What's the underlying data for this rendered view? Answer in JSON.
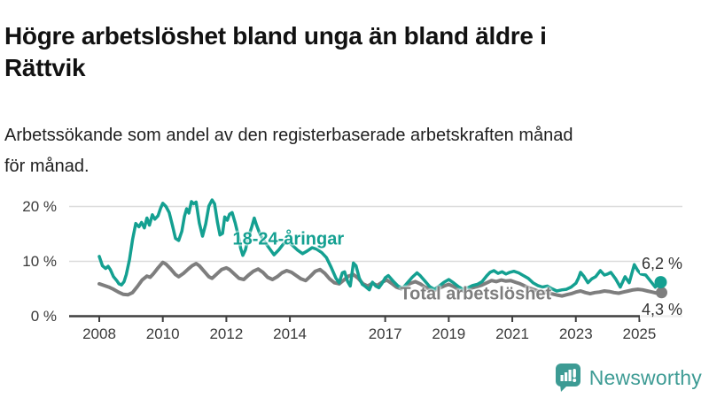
{
  "header": {
    "title": "Högre arbetslöshet bland unga än bland äldre i\nRättvik",
    "subtitle": "Arbetssökande som andel av den registerbaserade arbetskraften månad\nför månad."
  },
  "footer": {
    "brand": "Newsworthy"
  },
  "colors": {
    "young_line": "#14a091",
    "total_line": "#7e7e7e",
    "gridline": "#dcdcdc",
    "axis": "#3f3f3f",
    "value_label": "#333333",
    "brand_teal": "#3d9b94",
    "title": "#111111"
  },
  "chart_data": {
    "type": "line",
    "title": "Högre arbetslöshet bland unga än bland äldre i Rättvik",
    "subtitle": "Arbetssökande som andel av den registerbaserade arbetskraften månad för månad.",
    "x_domain": [
      2008,
      2025.75
    ],
    "y_domain": [
      0,
      22
    ],
    "grid": "horizontal",
    "y_ticks": [
      {
        "value": 0,
        "label": "0 %"
      },
      {
        "value": 10,
        "label": "10 %"
      },
      {
        "value": 20,
        "label": "20 %"
      }
    ],
    "x_ticks": [
      {
        "value": 2008,
        "label": "2008"
      },
      {
        "value": 2010,
        "label": "2010"
      },
      {
        "value": 2012,
        "label": "2012"
      },
      {
        "value": 2014,
        "label": "2014"
      },
      {
        "value": 2017,
        "label": "2017"
      },
      {
        "value": 2019,
        "label": "2019"
      },
      {
        "value": 2021,
        "label": "2021"
      },
      {
        "value": 2023,
        "label": "2023"
      },
      {
        "value": 2025,
        "label": "2025"
      }
    ],
    "series": [
      {
        "id": "young",
        "name": "18-24-åringar",
        "color": "#14a091",
        "stroke_width": 3.5,
        "dot_radius": 7,
        "end_label": "6,2 %",
        "end_value": 6.2,
        "label_anchor": {
          "year": 2013.95,
          "value": 13.9
        },
        "points": [
          [
            2008.0,
            10.9
          ],
          [
            2008.1,
            9.2
          ],
          [
            2008.2,
            8.7
          ],
          [
            2008.28,
            9.1
          ],
          [
            2008.35,
            8.5
          ],
          [
            2008.45,
            7.2
          ],
          [
            2008.55,
            6.5
          ],
          [
            2008.62,
            5.9
          ],
          [
            2008.7,
            5.7
          ],
          [
            2008.78,
            6.3
          ],
          [
            2008.85,
            7.6
          ],
          [
            2008.95,
            10.3
          ],
          [
            2009.05,
            14.0
          ],
          [
            2009.15,
            16.9
          ],
          [
            2009.25,
            16.3
          ],
          [
            2009.33,
            17.1
          ],
          [
            2009.42,
            16.1
          ],
          [
            2009.5,
            17.9
          ],
          [
            2009.58,
            16.6
          ],
          [
            2009.67,
            18.5
          ],
          [
            2009.75,
            17.7
          ],
          [
            2009.85,
            18.3
          ],
          [
            2009.93,
            19.7
          ],
          [
            2010.0,
            20.6
          ],
          [
            2010.1,
            20.0
          ],
          [
            2010.2,
            18.9
          ],
          [
            2010.3,
            16.6
          ],
          [
            2010.4,
            14.2
          ],
          [
            2010.5,
            13.8
          ],
          [
            2010.6,
            15.5
          ],
          [
            2010.68,
            18.2
          ],
          [
            2010.75,
            19.6
          ],
          [
            2010.82,
            18.8
          ],
          [
            2010.9,
            20.9
          ],
          [
            2010.97,
            20.5
          ],
          [
            2011.05,
            20.8
          ],
          [
            2011.15,
            17.0
          ],
          [
            2011.25,
            14.6
          ],
          [
            2011.35,
            16.8
          ],
          [
            2011.45,
            20.1
          ],
          [
            2011.55,
            21.2
          ],
          [
            2011.63,
            20.5
          ],
          [
            2011.72,
            17.1
          ],
          [
            2011.8,
            14.8
          ],
          [
            2011.88,
            15.1
          ],
          [
            2011.95,
            18.1
          ],
          [
            2012.03,
            17.5
          ],
          [
            2012.1,
            18.6
          ],
          [
            2012.18,
            18.9
          ],
          [
            2012.28,
            17.0
          ],
          [
            2012.38,
            14.6
          ],
          [
            2012.45,
            12.4
          ],
          [
            2012.52,
            11.1
          ],
          [
            2012.6,
            12.1
          ],
          [
            2012.7,
            14.5
          ],
          [
            2012.8,
            16.3
          ],
          [
            2012.88,
            17.9
          ],
          [
            2012.95,
            16.6
          ],
          [
            2013.05,
            15.1
          ],
          [
            2013.2,
            13.6
          ],
          [
            2013.35,
            12.4
          ],
          [
            2013.5,
            11.2
          ],
          [
            2013.65,
            12.1
          ],
          [
            2013.8,
            13.2
          ],
          [
            2013.95,
            13.6
          ],
          [
            2014.1,
            12.8
          ],
          [
            2014.25,
            12.0
          ],
          [
            2014.4,
            11.4
          ],
          [
            2014.55,
            11.9
          ],
          [
            2014.7,
            12.5
          ],
          [
            2014.85,
            12.2
          ],
          [
            2015.0,
            11.6
          ],
          [
            2015.15,
            10.7
          ],
          [
            2015.3,
            8.9
          ],
          [
            2015.45,
            6.9
          ],
          [
            2015.55,
            6.1
          ],
          [
            2015.65,
            7.9
          ],
          [
            2015.72,
            8.1
          ],
          [
            2015.82,
            6.3
          ],
          [
            2015.9,
            5.5
          ],
          [
            2016.0,
            9.7
          ],
          [
            2016.08,
            9.2
          ],
          [
            2016.18,
            7.0
          ],
          [
            2016.28,
            5.8
          ],
          [
            2016.38,
            5.4
          ],
          [
            2016.5,
            4.8
          ],
          [
            2016.6,
            6.2
          ],
          [
            2016.7,
            5.5
          ],
          [
            2016.8,
            5.2
          ],
          [
            2016.9,
            6.0
          ],
          [
            2017.0,
            7.0
          ],
          [
            2017.1,
            7.4
          ],
          [
            2017.25,
            6.4
          ],
          [
            2017.4,
            5.5
          ],
          [
            2017.55,
            5.1
          ],
          [
            2017.7,
            6.1
          ],
          [
            2017.85,
            7.1
          ],
          [
            2018.0,
            7.9
          ],
          [
            2018.1,
            7.4
          ],
          [
            2018.25,
            6.4
          ],
          [
            2018.4,
            5.4
          ],
          [
            2018.55,
            4.9
          ],
          [
            2018.7,
            5.5
          ],
          [
            2018.85,
            6.2
          ],
          [
            2019.0,
            6.7
          ],
          [
            2019.15,
            6.1
          ],
          [
            2019.3,
            5.4
          ],
          [
            2019.45,
            4.9
          ],
          [
            2019.6,
            5.2
          ],
          [
            2019.75,
            5.6
          ],
          [
            2019.9,
            5.8
          ],
          [
            2020.05,
            6.3
          ],
          [
            2020.2,
            7.4
          ],
          [
            2020.3,
            8.0
          ],
          [
            2020.42,
            8.3
          ],
          [
            2020.55,
            7.8
          ],
          [
            2020.68,
            8.1
          ],
          [
            2020.8,
            7.7
          ],
          [
            2020.92,
            8.0
          ],
          [
            2021.05,
            8.2
          ],
          [
            2021.2,
            7.9
          ],
          [
            2021.35,
            7.4
          ],
          [
            2021.5,
            6.9
          ],
          [
            2021.65,
            6.1
          ],
          [
            2021.8,
            5.6
          ],
          [
            2021.95,
            5.3
          ],
          [
            2022.1,
            5.5
          ],
          [
            2022.25,
            5.0
          ],
          [
            2022.4,
            4.6
          ],
          [
            2022.57,
            4.8
          ],
          [
            2022.7,
            4.9
          ],
          [
            2022.85,
            5.3
          ],
          [
            2023.0,
            6.0
          ],
          [
            2023.08,
            6.9
          ],
          [
            2023.15,
            8.0
          ],
          [
            2023.25,
            7.3
          ],
          [
            2023.38,
            6.1
          ],
          [
            2023.5,
            6.8
          ],
          [
            2023.62,
            7.2
          ],
          [
            2023.77,
            8.3
          ],
          [
            2023.9,
            7.5
          ],
          [
            2024.0,
            7.7
          ],
          [
            2024.1,
            8.0
          ],
          [
            2024.25,
            6.8
          ],
          [
            2024.4,
            5.3
          ],
          [
            2024.55,
            7.2
          ],
          [
            2024.68,
            6.1
          ],
          [
            2024.84,
            9.4
          ],
          [
            2024.95,
            8.3
          ],
          [
            2025.05,
            7.7
          ],
          [
            2025.2,
            7.5
          ],
          [
            2025.35,
            6.4
          ],
          [
            2025.5,
            5.3
          ],
          [
            2025.67,
            6.2
          ]
        ]
      },
      {
        "id": "total",
        "name": "Total arbetslöshet",
        "color": "#7e7e7e",
        "stroke_width": 4,
        "dot_radius": 6.5,
        "end_label": "4,3 %",
        "end_value": 4.3,
        "label_anchor": {
          "year": 2019.85,
          "value": 3.95
        },
        "points": [
          [
            2008.0,
            5.9
          ],
          [
            2008.15,
            5.6
          ],
          [
            2008.3,
            5.3
          ],
          [
            2008.45,
            4.9
          ],
          [
            2008.6,
            4.4
          ],
          [
            2008.75,
            4.0
          ],
          [
            2008.9,
            3.9
          ],
          [
            2009.05,
            4.3
          ],
          [
            2009.2,
            5.4
          ],
          [
            2009.35,
            6.6
          ],
          [
            2009.5,
            7.3
          ],
          [
            2009.6,
            7.1
          ],
          [
            2009.7,
            7.7
          ],
          [
            2009.85,
            8.8
          ],
          [
            2010.0,
            9.8
          ],
          [
            2010.1,
            9.5
          ],
          [
            2010.25,
            8.6
          ],
          [
            2010.4,
            7.6
          ],
          [
            2010.5,
            7.2
          ],
          [
            2010.65,
            7.8
          ],
          [
            2010.8,
            8.6
          ],
          [
            2010.92,
            9.2
          ],
          [
            2011.05,
            9.6
          ],
          [
            2011.15,
            9.2
          ],
          [
            2011.3,
            8.2
          ],
          [
            2011.45,
            7.2
          ],
          [
            2011.55,
            6.9
          ],
          [
            2011.7,
            7.7
          ],
          [
            2011.85,
            8.5
          ],
          [
            2012.0,
            8.8
          ],
          [
            2012.1,
            8.5
          ],
          [
            2012.25,
            7.7
          ],
          [
            2012.4,
            6.9
          ],
          [
            2012.55,
            6.7
          ],
          [
            2012.7,
            7.5
          ],
          [
            2012.85,
            8.2
          ],
          [
            2013.0,
            8.6
          ],
          [
            2013.15,
            8.0
          ],
          [
            2013.3,
            7.1
          ],
          [
            2013.45,
            6.7
          ],
          [
            2013.6,
            7.2
          ],
          [
            2013.75,
            7.9
          ],
          [
            2013.9,
            8.3
          ],
          [
            2014.05,
            8.0
          ],
          [
            2014.2,
            7.4
          ],
          [
            2014.35,
            6.8
          ],
          [
            2014.5,
            6.5
          ],
          [
            2014.65,
            7.3
          ],
          [
            2014.8,
            8.2
          ],
          [
            2014.95,
            8.5
          ],
          [
            2015.1,
            7.8
          ],
          [
            2015.25,
            6.8
          ],
          [
            2015.4,
            6.1
          ],
          [
            2015.55,
            5.9
          ],
          [
            2015.7,
            6.6
          ],
          [
            2015.85,
            7.3
          ],
          [
            2016.0,
            7.6
          ],
          [
            2016.15,
            6.9
          ],
          [
            2016.3,
            5.9
          ],
          [
            2016.45,
            5.5
          ],
          [
            2016.6,
            6.0
          ],
          [
            2016.75,
            5.6
          ],
          [
            2016.9,
            6.2
          ],
          [
            2017.05,
            6.6
          ],
          [
            2017.2,
            6.0
          ],
          [
            2017.35,
            5.3
          ],
          [
            2017.5,
            5.0
          ],
          [
            2017.65,
            5.5
          ],
          [
            2017.8,
            6.0
          ],
          [
            2017.95,
            6.3
          ],
          [
            2018.1,
            5.9
          ],
          [
            2018.25,
            5.3
          ],
          [
            2018.4,
            4.9
          ],
          [
            2018.55,
            4.7
          ],
          [
            2018.7,
            5.1
          ],
          [
            2018.85,
            5.5
          ],
          [
            2019.0,
            5.8
          ],
          [
            2019.15,
            5.4
          ],
          [
            2019.3,
            4.9
          ],
          [
            2019.45,
            4.6
          ],
          [
            2019.6,
            4.9
          ],
          [
            2019.75,
            5.2
          ],
          [
            2019.9,
            5.4
          ],
          [
            2020.05,
            5.7
          ],
          [
            2020.2,
            6.1
          ],
          [
            2020.35,
            6.5
          ],
          [
            2020.5,
            6.3
          ],
          [
            2020.65,
            6.6
          ],
          [
            2020.8,
            6.4
          ],
          [
            2020.95,
            6.5
          ],
          [
            2021.1,
            6.2
          ],
          [
            2021.25,
            5.9
          ],
          [
            2021.4,
            5.5
          ],
          [
            2021.55,
            5.1
          ],
          [
            2021.7,
            4.8
          ],
          [
            2021.85,
            4.5
          ],
          [
            2022.0,
            4.4
          ],
          [
            2022.15,
            4.2
          ],
          [
            2022.3,
            4.0
          ],
          [
            2022.45,
            3.8
          ],
          [
            2022.57,
            3.7
          ],
          [
            2022.7,
            3.9
          ],
          [
            2022.85,
            4.1
          ],
          [
            2023.0,
            4.4
          ],
          [
            2023.15,
            4.6
          ],
          [
            2023.3,
            4.3
          ],
          [
            2023.45,
            4.1
          ],
          [
            2023.6,
            4.3
          ],
          [
            2023.75,
            4.4
          ],
          [
            2023.9,
            4.6
          ],
          [
            2024.05,
            4.5
          ],
          [
            2024.2,
            4.3
          ],
          [
            2024.35,
            4.2
          ],
          [
            2024.5,
            4.4
          ],
          [
            2024.65,
            4.6
          ],
          [
            2024.8,
            4.8
          ],
          [
            2024.95,
            4.9
          ],
          [
            2025.1,
            4.8
          ],
          [
            2025.25,
            4.6
          ],
          [
            2025.4,
            4.4
          ],
          [
            2025.55,
            4.2
          ],
          [
            2025.7,
            4.3
          ]
        ]
      }
    ]
  }
}
